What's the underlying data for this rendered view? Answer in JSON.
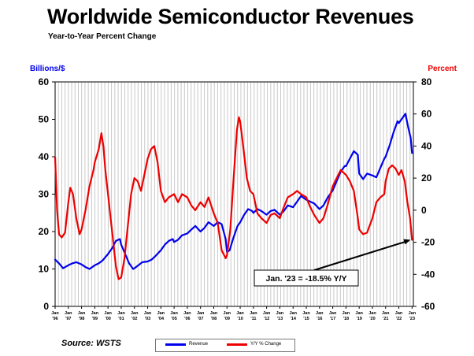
{
  "title": "Worldwide Semiconductor Revenues",
  "subtitle": "Year-to-Year Percent Change",
  "source": "Source: WSTS",
  "colors": {
    "revenue": "#0000ee",
    "yoy": "#ee0000",
    "grid": "#c8c8c8",
    "axis": "#000000"
  },
  "chart_data": {
    "type": "line",
    "ylabel_left": "Billions/$",
    "ylabel_right": "Percent",
    "ylim_left": [
      0,
      60
    ],
    "ylim_right": [
      -60,
      80
    ],
    "yticks_left": [
      "0",
      "10",
      "20",
      "30",
      "40",
      "50",
      "60"
    ],
    "yticks_right": [
      "-60",
      "-40",
      "-20",
      "0",
      "20",
      "40",
      "60",
      "80"
    ],
    "xlim": [
      1996,
      2023.1
    ],
    "grid": "vertical",
    "x_ticks": [
      {
        "x": 1996,
        "month": "Jan",
        "year": "'96"
      },
      {
        "x": 1997,
        "month": "Jan",
        "year": "'97"
      },
      {
        "x": 1998,
        "month": "Jan",
        "year": "'98"
      },
      {
        "x": 1999,
        "month": "Jan",
        "year": "'99"
      },
      {
        "x": 2000,
        "month": "Jan",
        "year": "'00"
      },
      {
        "x": 2001,
        "month": "Jan",
        "year": "'01"
      },
      {
        "x": 2002,
        "month": "Jan",
        "year": "'02"
      },
      {
        "x": 2003,
        "month": "Jan",
        "year": "'03"
      },
      {
        "x": 2004,
        "month": "Jan",
        "year": "'04"
      },
      {
        "x": 2005,
        "month": "Jan",
        "year": "'05"
      },
      {
        "x": 2006,
        "month": "Jan",
        "year": "'06"
      },
      {
        "x": 2007,
        "month": "Jan",
        "year": "'07"
      },
      {
        "x": 2008,
        "month": "Jan",
        "year": "'08"
      },
      {
        "x": 2009,
        "month": "Jan",
        "year": "'09"
      },
      {
        "x": 2010,
        "month": "Jan",
        "year": "'10"
      },
      {
        "x": 2011,
        "month": "Jan",
        "year": "'11"
      },
      {
        "x": 2012,
        "month": "Jan",
        "year": "'12"
      },
      {
        "x": 2013,
        "month": "Jan",
        "year": "'13"
      },
      {
        "x": 2014,
        "month": "Jan",
        "year": "'14"
      },
      {
        "x": 2015,
        "month": "Jan",
        "year": "'15"
      },
      {
        "x": 2016,
        "month": "Jan",
        "year": "'16"
      },
      {
        "x": 2017,
        "month": "Jan",
        "year": "'17"
      },
      {
        "x": 2018,
        "month": "Jan",
        "year": "'18"
      },
      {
        "x": 2019,
        "month": "Jan",
        "year": "'19"
      },
      {
        "x": 2020,
        "month": "Jan",
        "year": "'20"
      },
      {
        "x": 2021,
        "month": "Jan",
        "year": "'21"
      },
      {
        "x": 2022,
        "month": "Jan",
        "year": "'22"
      },
      {
        "x": 2023,
        "month": "Jan",
        "year": "'23"
      }
    ],
    "series": [
      {
        "name": "Revenue",
        "axis": "left",
        "points": [
          [
            1996.0,
            12.5
          ],
          [
            1996.3,
            11.5
          ],
          [
            1996.6,
            10.2
          ],
          [
            1997.0,
            11.0
          ],
          [
            1997.3,
            11.5
          ],
          [
            1997.6,
            11.8
          ],
          [
            1998.0,
            11.2
          ],
          [
            1998.3,
            10.5
          ],
          [
            1998.6,
            10.0
          ],
          [
            1999.0,
            11.0
          ],
          [
            1999.3,
            11.5
          ],
          [
            1999.6,
            12.3
          ],
          [
            2000.0,
            14.0
          ],
          [
            2000.3,
            15.5
          ],
          [
            2000.6,
            17.5
          ],
          [
            2000.9,
            18.0
          ],
          [
            2001.0,
            16.5
          ],
          [
            2001.3,
            14.0
          ],
          [
            2001.6,
            11.5
          ],
          [
            2001.9,
            10.0
          ],
          [
            2002.0,
            10.2
          ],
          [
            2002.3,
            11.0
          ],
          [
            2002.6,
            11.8
          ],
          [
            2003.0,
            12.0
          ],
          [
            2003.3,
            12.5
          ],
          [
            2003.6,
            13.5
          ],
          [
            2004.0,
            15.0
          ],
          [
            2004.3,
            16.5
          ],
          [
            2004.6,
            17.5
          ],
          [
            2004.9,
            18.0
          ],
          [
            2005.0,
            17.2
          ],
          [
            2005.3,
            17.8
          ],
          [
            2005.6,
            19.0
          ],
          [
            2006.0,
            19.5
          ],
          [
            2006.3,
            20.5
          ],
          [
            2006.6,
            21.5
          ],
          [
            2007.0,
            20.0
          ],
          [
            2007.3,
            21.0
          ],
          [
            2007.6,
            22.5
          ],
          [
            2008.0,
            21.5
          ],
          [
            2008.3,
            22.5
          ],
          [
            2008.6,
            22.0
          ],
          [
            2008.9,
            18.0
          ],
          [
            2009.0,
            14.5
          ],
          [
            2009.2,
            15.0
          ],
          [
            2009.5,
            18.5
          ],
          [
            2009.8,
            21.5
          ],
          [
            2010.0,
            22.5
          ],
          [
            2010.3,
            24.5
          ],
          [
            2010.6,
            26.0
          ],
          [
            2010.9,
            25.5
          ],
          [
            2011.0,
            25.0
          ],
          [
            2011.3,
            26.0
          ],
          [
            2011.6,
            25.5
          ],
          [
            2012.0,
            24.5
          ],
          [
            2012.3,
            25.5
          ],
          [
            2012.6,
            25.8
          ],
          [
            2013.0,
            24.5
          ],
          [
            2013.3,
            25.5
          ],
          [
            2013.6,
            27.0
          ],
          [
            2014.0,
            26.5
          ],
          [
            2014.3,
            28.0
          ],
          [
            2014.6,
            29.5
          ],
          [
            2015.0,
            28.5
          ],
          [
            2015.3,
            28.0
          ],
          [
            2015.6,
            27.5
          ],
          [
            2016.0,
            26.0
          ],
          [
            2016.3,
            27.0
          ],
          [
            2016.6,
            29.0
          ],
          [
            2017.0,
            31.0
          ],
          [
            2017.3,
            33.5
          ],
          [
            2017.6,
            36.0
          ],
          [
            2017.9,
            37.5
          ],
          [
            2018.0,
            37.5
          ],
          [
            2018.3,
            39.5
          ],
          [
            2018.6,
            41.5
          ],
          [
            2018.9,
            40.5
          ],
          [
            2019.0,
            35.5
          ],
          [
            2019.3,
            34.0
          ],
          [
            2019.6,
            35.5
          ],
          [
            2020.0,
            35.0
          ],
          [
            2020.3,
            34.5
          ],
          [
            2020.6,
            37.0
          ],
          [
            2020.9,
            39.5
          ],
          [
            2021.0,
            40.0
          ],
          [
            2021.3,
            43.0
          ],
          [
            2021.6,
            46.5
          ],
          [
            2021.9,
            49.5
          ],
          [
            2022.0,
            49.0
          ],
          [
            2022.3,
            50.5
          ],
          [
            2022.5,
            51.5
          ],
          [
            2022.7,
            48.0
          ],
          [
            2022.9,
            45.0
          ],
          [
            2023.0,
            41.0
          ]
        ]
      },
      {
        "name": "Y/Y % Change",
        "axis": "right",
        "points": [
          [
            1996.0,
            33
          ],
          [
            1996.15,
            0
          ],
          [
            1996.3,
            -15
          ],
          [
            1996.5,
            -17
          ],
          [
            1996.75,
            -14
          ],
          [
            1997.0,
            5
          ],
          [
            1997.15,
            14
          ],
          [
            1997.35,
            10
          ],
          [
            1997.6,
            -5
          ],
          [
            1997.85,
            -15
          ],
          [
            1998.0,
            -12
          ],
          [
            1998.3,
            0
          ],
          [
            1998.6,
            15
          ],
          [
            1998.9,
            25
          ],
          [
            1999.0,
            30
          ],
          [
            1999.3,
            38
          ],
          [
            1999.5,
            48
          ],
          [
            1999.65,
            40
          ],
          [
            1999.8,
            25
          ],
          [
            2000.0,
            10
          ],
          [
            2000.2,
            -5
          ],
          [
            2000.4,
            -20
          ],
          [
            2000.6,
            -35
          ],
          [
            2000.8,
            -43
          ],
          [
            2001.0,
            -42
          ],
          [
            2001.25,
            -30
          ],
          [
            2001.5,
            -10
          ],
          [
            2001.75,
            10
          ],
          [
            2002.0,
            20
          ],
          [
            2002.25,
            18
          ],
          [
            2002.5,
            12
          ],
          [
            2002.75,
            22
          ],
          [
            2003.0,
            32
          ],
          [
            2003.25,
            38
          ],
          [
            2003.5,
            40
          ],
          [
            2003.75,
            30
          ],
          [
            2004.0,
            12
          ],
          [
            2004.3,
            5
          ],
          [
            2004.6,
            8
          ],
          [
            2005.0,
            10
          ],
          [
            2005.3,
            5
          ],
          [
            2005.6,
            10
          ],
          [
            2006.0,
            8
          ],
          [
            2006.3,
            3
          ],
          [
            2006.6,
            0
          ],
          [
            2007.0,
            5
          ],
          [
            2007.3,
            2
          ],
          [
            2007.6,
            8
          ],
          [
            2008.0,
            -2
          ],
          [
            2008.3,
            -8
          ],
          [
            2008.6,
            -25
          ],
          [
            2008.9,
            -30
          ],
          [
            2009.0,
            -28
          ],
          [
            2009.25,
            -12
          ],
          [
            2009.5,
            20
          ],
          [
            2009.75,
            50
          ],
          [
            2009.9,
            58
          ],
          [
            2010.0,
            55
          ],
          [
            2010.25,
            38
          ],
          [
            2010.5,
            20
          ],
          [
            2010.75,
            12
          ],
          [
            2011.0,
            10
          ],
          [
            2011.3,
            -2
          ],
          [
            2011.6,
            -5
          ],
          [
            2012.0,
            -8
          ],
          [
            2012.3,
            -3
          ],
          [
            2012.6,
            -2
          ],
          [
            2013.0,
            -5
          ],
          [
            2013.3,
            2
          ],
          [
            2013.6,
            8
          ],
          [
            2014.0,
            10
          ],
          [
            2014.3,
            12
          ],
          [
            2014.6,
            10
          ],
          [
            2015.0,
            8
          ],
          [
            2015.3,
            2
          ],
          [
            2015.6,
            -3
          ],
          [
            2016.0,
            -8
          ],
          [
            2016.3,
            -5
          ],
          [
            2016.6,
            3
          ],
          [
            2017.0,
            15
          ],
          [
            2017.3,
            20
          ],
          [
            2017.6,
            25
          ],
          [
            2018.0,
            22
          ],
          [
            2018.3,
            18
          ],
          [
            2018.6,
            12
          ],
          [
            2018.9,
            -5
          ],
          [
            2019.0,
            -12
          ],
          [
            2019.3,
            -15
          ],
          [
            2019.6,
            -14
          ],
          [
            2020.0,
            -5
          ],
          [
            2020.3,
            5
          ],
          [
            2020.6,
            8
          ],
          [
            2020.9,
            10
          ],
          [
            2021.0,
            18
          ],
          [
            2021.25,
            26
          ],
          [
            2021.5,
            28
          ],
          [
            2021.75,
            26
          ],
          [
            2022.0,
            22
          ],
          [
            2022.2,
            25
          ],
          [
            2022.45,
            18
          ],
          [
            2022.65,
            5
          ],
          [
            2022.85,
            -5
          ],
          [
            2023.0,
            -18.5
          ]
        ]
      }
    ],
    "annotation": {
      "text": "Jan. '23 = -18.5% Y/Y",
      "target": [
        2023.0,
        -18.5
      ]
    }
  }
}
